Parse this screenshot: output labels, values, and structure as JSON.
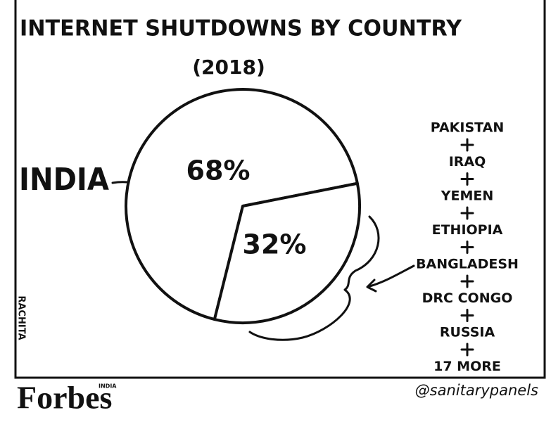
{
  "chart_data": {
    "type": "pie",
    "title": "INTERNET SHUTDOWNS BY COUNTRY",
    "subtitle": "(2018)",
    "categories": [
      "INDIA",
      null
    ],
    "values": [
      68,
      32
    ],
    "value_labels": [
      "68%",
      "32%"
    ],
    "color": "#ffffff",
    "other_countries": [
      "PAKISTAN",
      "IRAQ",
      "YEMEN",
      "ETHIOPIA",
      "BANGLADESH",
      "DRC CONGO",
      "RUSSIA",
      "17 MORE"
    ]
  },
  "artist": "RACHITA",
  "credit": "@sanitarypanels",
  "logo": "Forbes",
  "logo_edition": "INDIA"
}
